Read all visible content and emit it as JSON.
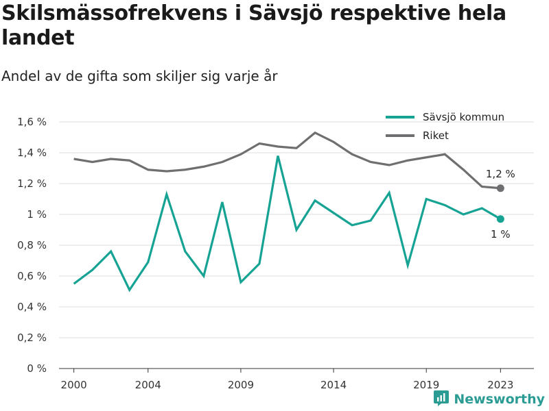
{
  "colors": {
    "savsjo": "#16a394",
    "riket": "#6f6f71",
    "grid": "#dddddd",
    "brand": "#2b9c94"
  },
  "brand": {
    "name": "Newsworthy",
    "icon": "newsworthy-logo-icon"
  },
  "chart_data": {
    "type": "line",
    "title": "Skilsmässofrekvens i Sävsjö respektive hela landet",
    "subtitle": "Andel av de gifta som skiljer sig varje år",
    "xlabel": "",
    "ylabel": "",
    "x": [
      2000,
      2001,
      2002,
      2003,
      2004,
      2005,
      2006,
      2007,
      2008,
      2009,
      2010,
      2011,
      2012,
      2013,
      2014,
      2015,
      2016,
      2017,
      2018,
      2019,
      2020,
      2021,
      2022,
      2023
    ],
    "x_ticks": [
      "2000",
      "2004",
      "2009",
      "2014",
      "2019",
      "2023"
    ],
    "ylim": [
      0,
      1.6
    ],
    "y_ticks": [
      "0 %",
      "0,2 %",
      "0,4 %",
      "0,6 %",
      "0,8 %",
      "1 %",
      "1,2 %",
      "1,4 %",
      "1,6 %"
    ],
    "grid": true,
    "legend_position": "top-right",
    "series": [
      {
        "name": "Sävsjö kommun",
        "values": [
          0.55,
          0.64,
          0.76,
          0.51,
          0.69,
          1.13,
          0.76,
          0.6,
          1.08,
          0.56,
          0.68,
          1.38,
          0.9,
          1.09,
          1.01,
          0.93,
          0.96,
          1.14,
          0.67,
          1.1,
          1.06,
          1.0,
          1.04,
          0.97
        ],
        "end_label": "1 %"
      },
      {
        "name": "Riket",
        "values": [
          1.36,
          1.34,
          1.36,
          1.35,
          1.29,
          1.28,
          1.29,
          1.31,
          1.34,
          1.39,
          1.46,
          1.44,
          1.43,
          1.53,
          1.47,
          1.39,
          1.34,
          1.32,
          1.35,
          1.37,
          1.39,
          1.29,
          1.18,
          1.17
        ],
        "end_label": "1,2 %"
      }
    ]
  }
}
